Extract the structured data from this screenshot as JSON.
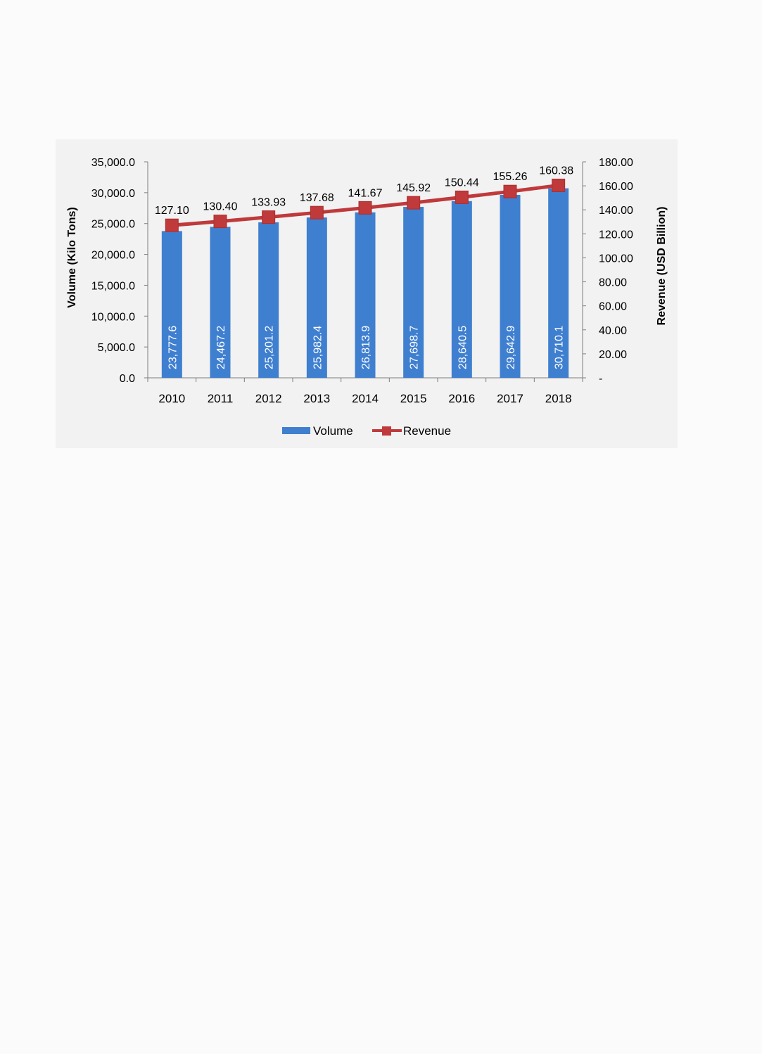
{
  "chart_data": {
    "type": "bar",
    "categories": [
      "2010",
      "2011",
      "2012",
      "2013",
      "2014",
      "2015",
      "2016",
      "2017",
      "2018"
    ],
    "series": [
      {
        "name": "Volume",
        "type": "bar",
        "axis": "left",
        "values": [
          23777.6,
          24467.2,
          25201.2,
          25982.4,
          26813.9,
          27698.7,
          28640.5,
          29642.9,
          30710.1
        ],
        "labels": [
          "23,777.6",
          "24,467.2",
          "25,201.2",
          "25,982.4",
          "26,813.9",
          "27,698.7",
          "28,640.5",
          "29,642.9",
          "30,710.1"
        ],
        "color": "#3f7fd0"
      },
      {
        "name": "Revenue",
        "type": "line",
        "axis": "right",
        "values": [
          127.1,
          130.4,
          133.93,
          137.68,
          141.67,
          145.92,
          150.44,
          155.26,
          160.38
        ],
        "labels": [
          "127.10",
          "130.40",
          "133.93",
          "137.68",
          "141.67",
          "145.92",
          "150.44",
          "155.26",
          "160.38"
        ],
        "color": "#c0393b"
      }
    ],
    "y_left": {
      "label": "Volume (Kilo Tons)",
      "range": [
        0,
        35000
      ],
      "ticks": [
        0,
        5000,
        10000,
        15000,
        20000,
        25000,
        30000,
        35000
      ],
      "tick_labels": [
        "0.0",
        "5,000.0",
        "10,000.0",
        "15,000.0",
        "20,000.0",
        "25,000.0",
        "30,000.0",
        "35,000.0"
      ]
    },
    "y_right": {
      "label": "Revenue (USD Billion)",
      "range": [
        0,
        180
      ],
      "ticks": [
        0,
        20,
        40,
        60,
        80,
        100,
        120,
        140,
        160,
        180
      ],
      "tick_labels": [
        "-",
        "20.00",
        "40.00",
        "60.00",
        "80.00",
        "100.00",
        "120.00",
        "140.00",
        "160.00",
        "180.00"
      ]
    },
    "grid": false,
    "legend_position": "bottom"
  }
}
